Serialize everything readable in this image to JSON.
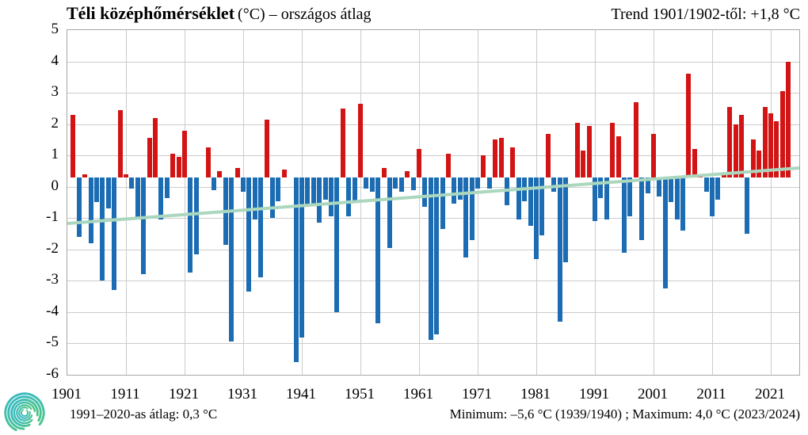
{
  "header": {
    "title_bold": "Téli középhőmérséklet",
    "title_rest": "(°C) – országos átlag",
    "trend_label": "Trend 1901/1902-től: +1,8 °C"
  },
  "footer": {
    "left": "1991–2020-as átlag:  0,3 °C",
    "right": "Minimum:  –5,6 °C (1939/1940)  ; Maximum:  4,0 °C (2023/2024)"
  },
  "colors": {
    "positive_bar": "#d21414",
    "negative_bar": "#1b6cb3",
    "trend_line": "#aad7be",
    "gridline": "#cccccc",
    "plot_border": "#a7a7a7",
    "text": "#000000",
    "logo_teal": "#35b8c8",
    "logo_green": "#52c77e"
  },
  "chart_data": {
    "type": "bar",
    "title": "Téli középhőmérséklet (°C) – országos átlag",
    "xlabel": "",
    "ylabel": "°C",
    "grid": true,
    "legend": "none",
    "baseline": 0.3,
    "baseline_note": "bars drawn from the 1991–2020 average of 0.3 °C; red above, blue below",
    "ylim": [
      -6,
      5
    ],
    "yticks": [
      5,
      4,
      3,
      2,
      1,
      0,
      -1,
      -2,
      -3,
      -4,
      -5,
      -6
    ],
    "xticks": [
      1901,
      1911,
      1921,
      1931,
      1941,
      1951,
      1961,
      1971,
      1981,
      1991,
      2001,
      2011,
      2021
    ],
    "first_winter_year": 1902,
    "last_winter_year": 2024,
    "values": [
      2.3,
      -1.6,
      0.4,
      -1.8,
      -0.5,
      -3.0,
      -0.7,
      -3.3,
      2.45,
      0.4,
      -0.05,
      -1.05,
      -2.8,
      1.55,
      2.2,
      -1.05,
      -0.35,
      1.05,
      0.95,
      1.8,
      -2.75,
      -2.15,
      0.3,
      1.25,
      -0.1,
      0.5,
      -1.85,
      -4.95,
      0.6,
      -0.15,
      -3.35,
      -1.05,
      -2.9,
      2.15,
      -1.0,
      -0.45,
      0.55,
      0.3,
      -5.6,
      -4.8,
      -0.65,
      -0.55,
      -1.15,
      -0.4,
      -0.95,
      -4.0,
      2.5,
      -0.95,
      -0.5,
      2.65,
      -0.05,
      -0.15,
      -4.35,
      0.6,
      -1.95,
      -0.05,
      -0.15,
      0.5,
      -0.1,
      1.2,
      -0.65,
      -4.9,
      -4.7,
      -1.35,
      1.05,
      -0.55,
      -0.4,
      -2.25,
      -1.7,
      -0.05,
      1.0,
      -0.05,
      1.5,
      1.55,
      -0.6,
      1.25,
      -1.05,
      -0.45,
      -1.25,
      -2.3,
      -1.55,
      1.7,
      -0.15,
      -4.3,
      -2.4,
      0.3,
      2.05,
      1.15,
      1.95,
      -1.1,
      -0.35,
      -1.05,
      2.05,
      1.6,
      -2.1,
      -0.95,
      2.7,
      -1.7,
      -0.2,
      1.7,
      -0.3,
      -3.25,
      -0.5,
      -1.05,
      -1.4,
      3.6,
      1.2,
      0.4,
      -0.15,
      -0.95,
      -0.4,
      0.4,
      2.55,
      2.0,
      2.3,
      -1.5,
      1.5,
      1.15,
      2.55,
      2.35,
      2.1,
      3.05,
      4.0
    ],
    "minimum": {
      "value": -5.6,
      "winter": "1939/1940"
    },
    "maximum": {
      "value": 4.0,
      "winter": "2023/2024"
    },
    "trend": {
      "label": "Trend 1901/1902-től: +1,8 °C",
      "total_change_c": 1.8,
      "start_value": -1.17,
      "end_value": 0.6
    }
  }
}
